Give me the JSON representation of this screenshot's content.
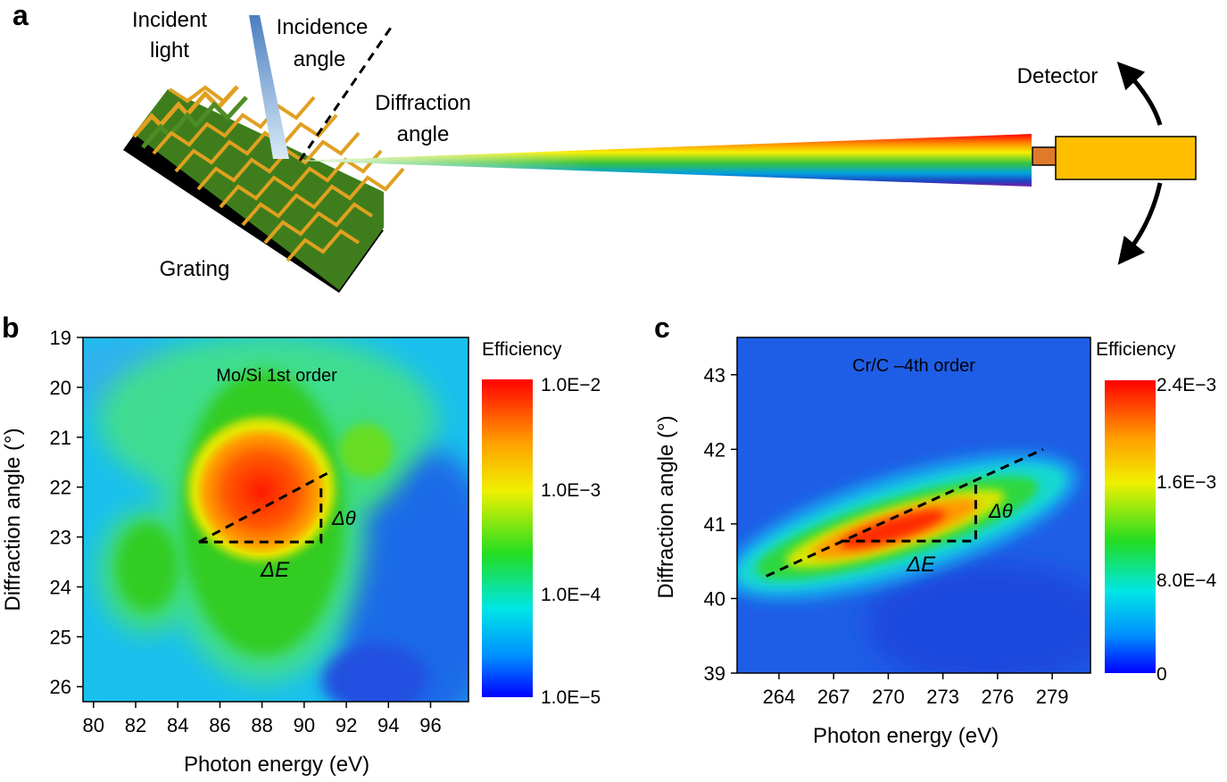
{
  "panel_a": {
    "label": "a",
    "incident_line1": "Incident",
    "incident_line2": "light",
    "incidence_line1": "Incidence",
    "incidence_line2": "angle",
    "diffraction_line1": "Diffraction",
    "diffraction_line2": "angle",
    "detector": "Detector",
    "grating": "Grating"
  },
  "chart_data": [
    {
      "type": "heatmap",
      "panel_label": "b",
      "title": "Mo/Si 1st order",
      "xlabel": "Photon energy (eV)",
      "ylabel": "Diffraction angle (°)",
      "xlim": [
        79.5,
        97.8
      ],
      "ylim": [
        26.3,
        19
      ],
      "xticks": [
        80,
        82,
        84,
        86,
        88,
        90,
        92,
        94,
        96
      ],
      "yticks": [
        19,
        20,
        21,
        22,
        23,
        24,
        25,
        26
      ],
      "colorbar": {
        "label": "Efficiency",
        "scale": "log",
        "ticks": [
          "1.0E−2",
          "1.0E−3",
          "1.0E−4",
          "1.0E−5"
        ]
      },
      "peak": {
        "x": 88.5,
        "y": 22.0
      },
      "annotations": {
        "de": "ΔE",
        "dtheta": "Δθ"
      },
      "dispersion_line": {
        "from": [
          85.0,
          23.1
        ],
        "to": [
          91.2,
          21.7
        ]
      }
    },
    {
      "type": "heatmap",
      "panel_label": "c",
      "title": "Cr/C –4th order",
      "xlabel": "Photon energy (eV)",
      "ylabel": "Diffraction angle (°)",
      "xlim": [
        261.7,
        281.1
      ],
      "ylim": [
        39,
        43.5
      ],
      "xticks": [
        264,
        267,
        270,
        273,
        276,
        279
      ],
      "yticks": [
        39,
        40,
        41,
        42,
        43
      ],
      "colorbar": {
        "label": "Efficiency",
        "scale": "linear",
        "ticks": [
          "2.4E−3",
          "1.6E−3",
          "8.0E−4",
          "0"
        ]
      },
      "peak": {
        "x": 271.5,
        "y": 41.1
      },
      "annotations": {
        "de": "ΔE",
        "dtheta": "Δθ"
      },
      "dispersion_line": {
        "from": [
          263.3,
          40.3
        ],
        "to": [
          278.5,
          42.0
        ]
      }
    }
  ]
}
